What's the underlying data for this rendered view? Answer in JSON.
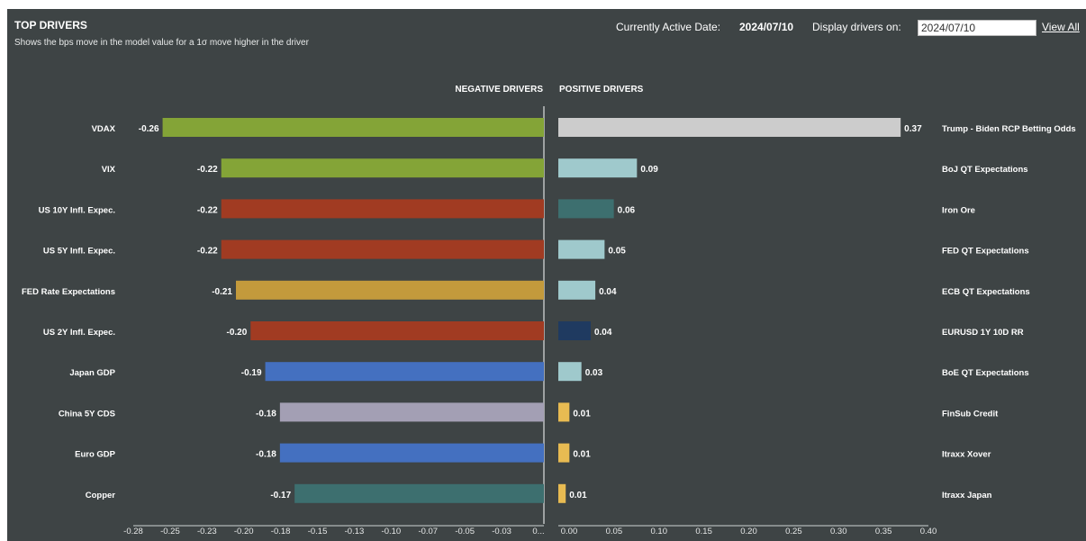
{
  "header": {
    "title": "TOP DRIVERS",
    "subtitle": "Shows the bps move in the model value for a 1σ move higher in the driver",
    "active_date_label": "Currently Active Date:",
    "active_date": "2024/07/10",
    "display_label": "Display drivers on:",
    "display_date": "2024/07/10",
    "view_all": "View All"
  },
  "chart_data": [
    {
      "type": "bar",
      "title": "NEGATIVE DRIVERS",
      "orientation": "horizontal",
      "xlim": [
        -0.28,
        0
      ],
      "tick_labels": [
        "-0.28",
        "-0.25",
        "-0.23",
        "-0.20",
        "-0.18",
        "-0.15",
        "-0.13",
        "-0.10",
        "-0.07",
        "-0.05",
        "-0.03",
        "0..."
      ],
      "categories": [
        "VDAX",
        "VIX",
        "US 10Y Infl. Expec.",
        "US 5Y Infl. Expec.",
        "FED Rate Expectations",
        "US 2Y Infl. Expec.",
        "Japan GDP",
        "China 5Y CDS",
        "Euro GDP",
        "Copper"
      ],
      "values": [
        -0.26,
        -0.22,
        -0.22,
        -0.22,
        -0.21,
        -0.2,
        -0.19,
        -0.18,
        -0.18,
        -0.17
      ],
      "value_labels": [
        "-0.26",
        "-0.22",
        "-0.22",
        "-0.22",
        "-0.21",
        "-0.20",
        "-0.19",
        "-0.18",
        "-0.18",
        "-0.17"
      ],
      "colors": [
        "#84a437",
        "#84a437",
        "#a13b22",
        "#a13b22",
        "#c39a3c",
        "#a13b22",
        "#4470c0",
        "#a39fb4",
        "#4470c0",
        "#3d6f6f"
      ]
    },
    {
      "type": "bar",
      "title": "POSITIVE DRIVERS",
      "orientation": "horizontal",
      "xlim": [
        0,
        0.4
      ],
      "tick_labels": [
        "0.00",
        "0.05",
        "0.10",
        "0.15",
        "0.20",
        "0.25",
        "0.30",
        "0.35",
        "0.40"
      ],
      "categories": [
        "Trump - Biden RCP Betting Odds",
        "BoJ QT Expectations",
        "Iron Ore",
        "FED QT Expectations",
        "ECB QT Expectations",
        "EURUSD 1Y 10D RR",
        "BoE QT Expectations",
        "FinSub Credit",
        "Itraxx Xover",
        "Itraxx Japan"
      ],
      "values": [
        0.37,
        0.085,
        0.06,
        0.05,
        0.04,
        0.035,
        0.025,
        0.012,
        0.012,
        0.008
      ],
      "value_labels": [
        "0.37",
        "0.09",
        "0.06",
        "0.05",
        "0.04",
        "0.04",
        "0.03",
        "0.01",
        "0.01",
        "0.01"
      ],
      "colors": [
        "#cccccc",
        "#9fc9cc",
        "#3d6f6f",
        "#9fc9cc",
        "#9fc9cc",
        "#1f3a60",
        "#9fc9cc",
        "#e8bb52",
        "#e8bb52",
        "#e8bb52"
      ]
    }
  ]
}
